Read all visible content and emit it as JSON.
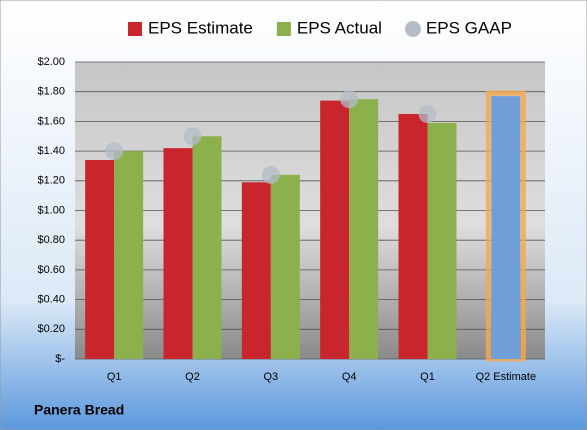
{
  "chart_data": {
    "type": "bar",
    "title": "Panera Bread",
    "categories": [
      "Q1",
      "Q2",
      "Q3",
      "Q4",
      "Q1",
      "Q2 Estimate"
    ],
    "series": [
      {
        "name": "EPS Estimate",
        "color": "#c8262c",
        "values": [
          1.34,
          1.42,
          1.19,
          1.74,
          1.65,
          1.77
        ],
        "highlight": {
          "index": 5,
          "color": "#6f9fd6",
          "glow": "#f5a94a"
        }
      },
      {
        "name": "EPS Actual",
        "color": "#8cb04c",
        "values": [
          1.4,
          1.5,
          1.24,
          1.75,
          1.59,
          null
        ]
      },
      {
        "name": "EPS GAAP",
        "color": "#b4bcc6",
        "marker": "circle",
        "values": [
          1.4,
          1.5,
          1.24,
          1.75,
          1.65,
          null
        ]
      }
    ],
    "ylim": [
      0,
      2
    ],
    "yticks": [
      {
        "value": 0,
        "label": "$-"
      },
      {
        "value": 0.2,
        "label": "$0.20"
      },
      {
        "value": 0.4,
        "label": "$0.40"
      },
      {
        "value": 0.6,
        "label": "$0.60"
      },
      {
        "value": 0.8,
        "label": "$0.80"
      },
      {
        "value": 1.0,
        "label": "$1.00"
      },
      {
        "value": 1.2,
        "label": "$1.20"
      },
      {
        "value": 1.4,
        "label": "$1.40"
      },
      {
        "value": 1.6,
        "label": "$1.60"
      },
      {
        "value": 1.8,
        "label": "$1.80"
      },
      {
        "value": 2.0,
        "label": "$2.00"
      }
    ],
    "grid": true
  }
}
